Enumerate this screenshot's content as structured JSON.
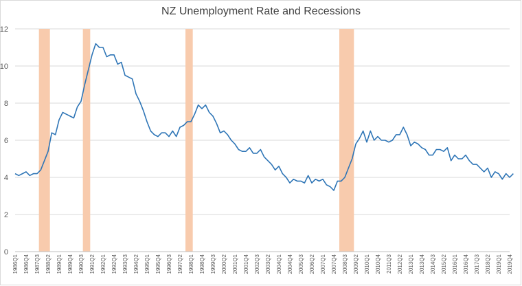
{
  "chart_data": {
    "type": "line",
    "title": "NZ Unemployment Rate and Recessions",
    "xlabel": "",
    "ylabel": "",
    "ylim": [
      0,
      12
    ],
    "yticks": [
      0,
      2,
      4,
      6,
      8,
      10,
      12
    ],
    "grid": "horizontal",
    "legend": "none",
    "colors": {
      "line": "#2e75b6",
      "recession": "#f8cbad",
      "grid": "#d9d9d9",
      "axis": "#bfbfbf"
    },
    "x_start": "1986Q1",
    "x_end": "2019Q4",
    "x_tick_labels": [
      "1986Q1",
      "1986Q4",
      "1987Q3",
      "1988Q2",
      "1989Q1",
      "1989Q4",
      "1990Q3",
      "1991Q2",
      "1992Q1",
      "1992Q4",
      "1993Q3",
      "1994Q2",
      "1995Q1",
      "1995Q4",
      "1996Q3",
      "1997Q2",
      "1998Q1",
      "1998Q4",
      "1999Q3",
      "2000Q2",
      "2001Q1",
      "2001Q4",
      "2002Q3",
      "2003Q2",
      "2004Q1",
      "2004Q4",
      "2005Q3",
      "2006Q2",
      "2007Q1",
      "2007Q4",
      "2008Q3",
      "2009Q2",
      "2010Q1",
      "2010Q4",
      "2011Q3",
      "2012Q2",
      "2013Q1",
      "2013Q4",
      "2014Q3",
      "2015Q2",
      "2016Q1",
      "2016Q4",
      "2017Q3",
      "2018Q2",
      "2019Q1",
      "2019Q4"
    ],
    "recessions": [
      {
        "start": "1987Q4",
        "end": "1988Q2"
      },
      {
        "start": "1990Q4",
        "end": "1991Q1"
      },
      {
        "start": "1997Q4",
        "end": "1998Q1"
      },
      {
        "start": "2008Q2",
        "end": "2009Q1"
      }
    ],
    "series": [
      {
        "values": [
          [
            "1986Q1",
            4.2
          ],
          [
            "1986Q2",
            4.1
          ],
          [
            "1986Q3",
            4.2
          ],
          [
            "1986Q4",
            4.3
          ],
          [
            "1987Q1",
            4.1
          ],
          [
            "1987Q2",
            4.2
          ],
          [
            "1987Q3",
            4.2
          ],
          [
            "1987Q4",
            4.4
          ],
          [
            "1988Q1",
            4.9
          ],
          [
            "1988Q2",
            5.4
          ],
          [
            "1988Q3",
            6.4
          ],
          [
            "1988Q4",
            6.3
          ],
          [
            "1989Q1",
            7.1
          ],
          [
            "1989Q2",
            7.5
          ],
          [
            "1989Q3",
            7.4
          ],
          [
            "1989Q4",
            7.3
          ],
          [
            "1990Q1",
            7.2
          ],
          [
            "1990Q2",
            7.8
          ],
          [
            "1990Q3",
            8.1
          ],
          [
            "1990Q4",
            9.0
          ],
          [
            "1991Q1",
            9.8
          ],
          [
            "1991Q2",
            10.6
          ],
          [
            "1991Q3",
            11.2
          ],
          [
            "1991Q4",
            11.0
          ],
          [
            "1992Q1",
            11.0
          ],
          [
            "1992Q2",
            10.5
          ],
          [
            "1992Q3",
            10.6
          ],
          [
            "1992Q4",
            10.6
          ],
          [
            "1993Q1",
            10.1
          ],
          [
            "1993Q2",
            10.2
          ],
          [
            "1993Q3",
            9.5
          ],
          [
            "1993Q4",
            9.4
          ],
          [
            "1994Q1",
            9.3
          ],
          [
            "1994Q2",
            8.5
          ],
          [
            "1994Q3",
            8.1
          ],
          [
            "1994Q4",
            7.6
          ],
          [
            "1995Q1",
            7.0
          ],
          [
            "1995Q2",
            6.5
          ],
          [
            "1995Q3",
            6.3
          ],
          [
            "1995Q4",
            6.2
          ],
          [
            "1996Q1",
            6.4
          ],
          [
            "1996Q2",
            6.4
          ],
          [
            "1996Q3",
            6.2
          ],
          [
            "1996Q4",
            6.5
          ],
          [
            "1997Q1",
            6.2
          ],
          [
            "1997Q2",
            6.7
          ],
          [
            "1997Q3",
            6.8
          ],
          [
            "1997Q4",
            7.0
          ],
          [
            "1998Q1",
            7.0
          ],
          [
            "1998Q2",
            7.4
          ],
          [
            "1998Q3",
            7.9
          ],
          [
            "1998Q4",
            7.7
          ],
          [
            "1999Q1",
            7.9
          ],
          [
            "1999Q2",
            7.5
          ],
          [
            "1999Q3",
            7.3
          ],
          [
            "1999Q4",
            6.9
          ],
          [
            "2000Q1",
            6.4
          ],
          [
            "2000Q2",
            6.5
          ],
          [
            "2000Q3",
            6.3
          ],
          [
            "2000Q4",
            6.0
          ],
          [
            "2001Q1",
            5.8
          ],
          [
            "2001Q2",
            5.5
          ],
          [
            "2001Q3",
            5.4
          ],
          [
            "2001Q4",
            5.4
          ],
          [
            "2002Q1",
            5.6
          ],
          [
            "2002Q2",
            5.3
          ],
          [
            "2002Q3",
            5.3
          ],
          [
            "2002Q4",
            5.5
          ],
          [
            "2003Q1",
            5.1
          ],
          [
            "2003Q2",
            4.9
          ],
          [
            "2003Q3",
            4.7
          ],
          [
            "2003Q4",
            4.4
          ],
          [
            "2004Q1",
            4.6
          ],
          [
            "2004Q2",
            4.2
          ],
          [
            "2004Q3",
            4.0
          ],
          [
            "2004Q4",
            3.7
          ],
          [
            "2005Q1",
            3.9
          ],
          [
            "2005Q2",
            3.8
          ],
          [
            "2005Q3",
            3.8
          ],
          [
            "2005Q4",
            3.7
          ],
          [
            "2006Q1",
            4.1
          ],
          [
            "2006Q2",
            3.7
          ],
          [
            "2006Q3",
            3.9
          ],
          [
            "2006Q4",
            3.8
          ],
          [
            "2007Q1",
            3.9
          ],
          [
            "2007Q2",
            3.6
          ],
          [
            "2007Q3",
            3.5
          ],
          [
            "2007Q4",
            3.3
          ],
          [
            "2008Q1",
            3.8
          ],
          [
            "2008Q2",
            3.8
          ],
          [
            "2008Q3",
            4.0
          ],
          [
            "2008Q4",
            4.5
          ],
          [
            "2009Q1",
            5.0
          ],
          [
            "2009Q2",
            5.8
          ],
          [
            "2009Q3",
            6.1
          ],
          [
            "2009Q4",
            6.5
          ],
          [
            "2010Q1",
            5.9
          ],
          [
            "2010Q2",
            6.5
          ],
          [
            "2010Q3",
            6.0
          ],
          [
            "2010Q4",
            6.2
          ],
          [
            "2011Q1",
            6.0
          ],
          [
            "2011Q2",
            6.0
          ],
          [
            "2011Q3",
            5.9
          ],
          [
            "2011Q4",
            6.0
          ],
          [
            "2012Q1",
            6.3
          ],
          [
            "2012Q2",
            6.3
          ],
          [
            "2012Q3",
            6.7
          ],
          [
            "2012Q4",
            6.3
          ],
          [
            "2013Q1",
            5.7
          ],
          [
            "2013Q2",
            5.9
          ],
          [
            "2013Q3",
            5.8
          ],
          [
            "2013Q4",
            5.6
          ],
          [
            "2014Q1",
            5.5
          ],
          [
            "2014Q2",
            5.2
          ],
          [
            "2014Q3",
            5.2
          ],
          [
            "2014Q4",
            5.5
          ],
          [
            "2015Q1",
            5.5
          ],
          [
            "2015Q2",
            5.4
          ],
          [
            "2015Q3",
            5.6
          ],
          [
            "2015Q4",
            4.9
          ],
          [
            "2016Q1",
            5.2
          ],
          [
            "2016Q2",
            5.0
          ],
          [
            "2016Q3",
            5.0
          ],
          [
            "2016Q4",
            5.2
          ],
          [
            "2017Q1",
            4.9
          ],
          [
            "2017Q2",
            4.7
          ],
          [
            "2017Q3",
            4.7
          ],
          [
            "2017Q4",
            4.5
          ],
          [
            "2018Q1",
            4.3
          ],
          [
            "2018Q2",
            4.5
          ],
          [
            "2018Q3",
            4.0
          ],
          [
            "2018Q4",
            4.3
          ],
          [
            "2019Q1",
            4.2
          ],
          [
            "2019Q2",
            3.9
          ],
          [
            "2019Q3",
            4.2
          ],
          [
            "2019Q4",
            4.0
          ],
          [
            "2020Q1",
            4.2
          ]
        ]
      }
    ]
  }
}
